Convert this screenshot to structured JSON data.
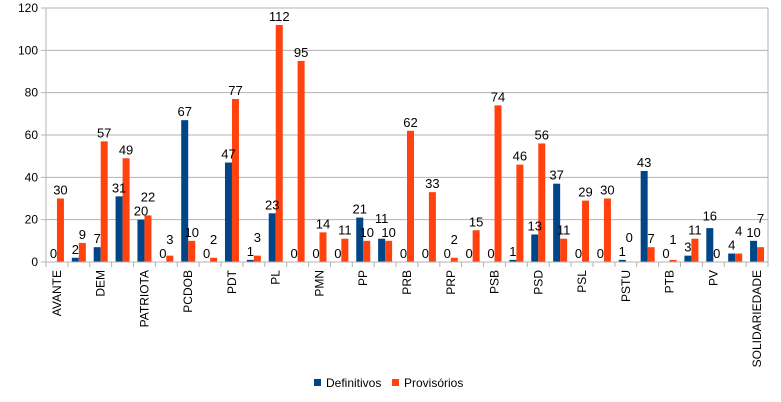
{
  "chart_data": {
    "type": "bar",
    "title": "",
    "xlabel": "",
    "ylabel": "",
    "ylim": [
      0,
      120
    ],
    "yticks": [
      0,
      20,
      40,
      60,
      80,
      100,
      120
    ],
    "grid": true,
    "legend_position": "bottom",
    "categories": [
      "AVANTE",
      "",
      "DEM",
      "",
      "PATRIOTA",
      "",
      "PCDOB",
      "",
      "PDT",
      "",
      "PL",
      "",
      "PMN",
      "",
      "PP",
      "",
      "PRB",
      "",
      "PRP",
      "",
      "PSB",
      "",
      "PSD",
      "",
      "PSL",
      "",
      "PSTU",
      "",
      "PTB",
      "",
      "PV",
      "",
      "SOLIDARIEDADE"
    ],
    "series": [
      {
        "name": "Definitivos",
        "color": "#004586",
        "values": [
          0,
          2,
          7,
          31,
          20,
          0,
          67,
          0,
          47,
          1,
          23,
          0,
          0,
          0,
          21,
          11,
          0,
          0,
          0,
          0,
          0,
          1,
          13,
          37,
          0,
          0,
          1,
          43,
          0,
          3,
          16,
          4,
          10
        ]
      },
      {
        "name": "Provisórios",
        "color": "#ff420e",
        "values": [
          30,
          9,
          57,
          49,
          22,
          3,
          10,
          2,
          77,
          3,
          112,
          95,
          14,
          11,
          10,
          10,
          62,
          33,
          2,
          15,
          74,
          46,
          56,
          11,
          29,
          30,
          0,
          7,
          1,
          11,
          0,
          4,
          7
        ]
      }
    ]
  }
}
